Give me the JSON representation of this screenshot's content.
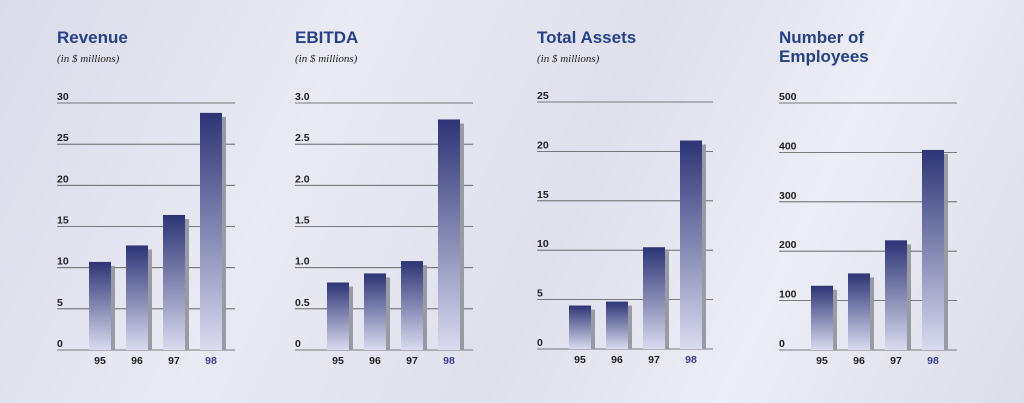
{
  "chart_data": [
    {
      "type": "bar",
      "title": "Revenue",
      "subtitle": "(in $ millions)",
      "categories": [
        "95",
        "96",
        "97",
        "98"
      ],
      "values": [
        10.7,
        12.7,
        16.4,
        28.8
      ],
      "yticks": [
        "0",
        "5",
        "10",
        "15",
        "20",
        "25",
        "30"
      ],
      "ylim": [
        0,
        30
      ],
      "grid": true,
      "highlight_category": "98"
    },
    {
      "type": "bar",
      "title": "EBITDA",
      "subtitle": "(in $ millions)",
      "categories": [
        "95",
        "96",
        "97",
        "98"
      ],
      "values": [
        0.82,
        0.93,
        1.08,
        2.8
      ],
      "yticks": [
        "0",
        "0.5",
        "1.0",
        "1.5",
        "2.0",
        "2.5",
        "3.0"
      ],
      "ylim": [
        0,
        3.0
      ],
      "grid": true,
      "highlight_category": "98"
    },
    {
      "type": "bar",
      "title": "Total Assets",
      "subtitle": "(in $ millions)",
      "categories": [
        "95",
        "96",
        "97",
        "98"
      ],
      "values": [
        4.4,
        4.8,
        10.3,
        21.1
      ],
      "yticks": [
        "0",
        "5",
        "10",
        "15",
        "20",
        "25"
      ],
      "ylim": [
        0,
        25
      ],
      "grid": true,
      "highlight_category": "98"
    },
    {
      "type": "bar",
      "title": "Number of\nEmployees",
      "subtitle": "",
      "categories": [
        "95",
        "96",
        "97",
        "98"
      ],
      "values": [
        130,
        155,
        222,
        405
      ],
      "yticks": [
        "0",
        "100",
        "200",
        "300",
        "400",
        "500"
      ],
      "ylim": [
        0,
        500
      ],
      "grid": true,
      "highlight_category": "98"
    }
  ],
  "colors": {
    "title": "#27408a",
    "bar_top": "#2c3475",
    "bar_bottom": "#d9dbef",
    "shadow": "#9a9aa3",
    "gridline": "#555555",
    "highlight_label": "#3a3f96"
  }
}
